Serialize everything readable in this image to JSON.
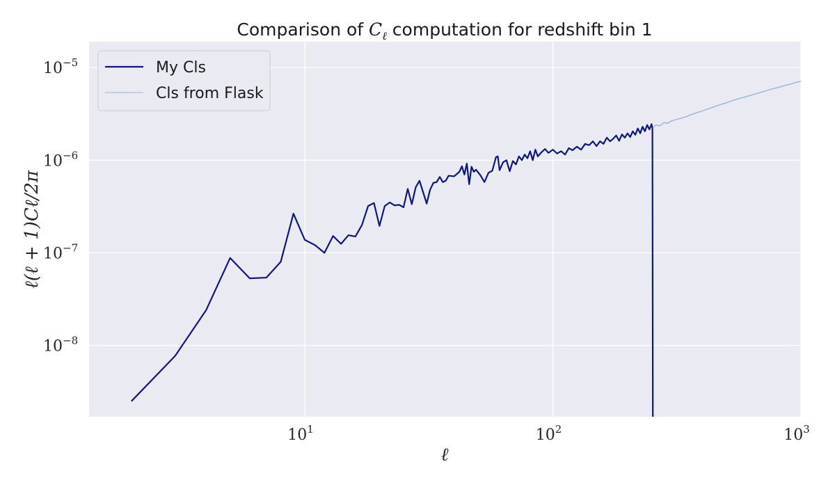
{
  "chart_data": {
    "type": "line",
    "title": "Comparison of C_ℓ computation for redshift bin 1",
    "title_parts": {
      "before": "Comparison of ",
      "symbol": "C",
      "subscript": "ℓ",
      "after": " computation for redshift bin 1"
    },
    "xlabel": "ℓ",
    "ylabel": "ℓ(ℓ + 1)Cℓ/2π",
    "x_scale": "log",
    "y_scale": "log",
    "xlim": [
      1.35,
      1000
    ],
    "ylim": [
      1.7e-09,
      1.9e-05
    ],
    "x_ticks": [
      {
        "value": 10,
        "base": "10",
        "exp": "1"
      },
      {
        "value": 100,
        "base": "10",
        "exp": "2"
      },
      {
        "value": 1000,
        "base": "10",
        "exp": "3"
      }
    ],
    "y_ticks": [
      {
        "value": 1e-05,
        "base": "10",
        "exp": "−5"
      },
      {
        "value": 1e-06,
        "base": "10",
        "exp": "−6"
      },
      {
        "value": 1e-07,
        "base": "10",
        "exp": "−7"
      },
      {
        "value": 1e-08,
        "base": "10",
        "exp": "−8"
      }
    ],
    "grid": true,
    "legend_position": "top-left",
    "colors": {
      "background": "#eaeaf2",
      "grid": "#ffffff",
      "my_cls": "#0c1683",
      "flask": "#97b4d4"
    },
    "series": [
      {
        "name": "My Cls",
        "style": "thick",
        "points": [
          [
            2,
            2.5e-09
          ],
          [
            3,
            7.7e-09
          ],
          [
            4,
            2.4e-08
          ],
          [
            5,
            8.8e-08
          ],
          [
            6,
            5.3e-08
          ],
          [
            7,
            5.4e-08
          ],
          [
            8,
            8e-08
          ],
          [
            9,
            2.65e-07
          ],
          [
            10,
            1.38e-07
          ],
          [
            11,
            1.21e-07
          ],
          [
            12,
            1e-07
          ],
          [
            13,
            1.52e-07
          ],
          [
            14,
            1.25e-07
          ],
          [
            15,
            1.55e-07
          ],
          [
            16,
            1.5e-07
          ],
          [
            17,
            2e-07
          ],
          [
            18,
            3.2e-07
          ],
          [
            19,
            3.45e-07
          ],
          [
            20,
            1.95e-07
          ],
          [
            21,
            3.2e-07
          ],
          [
            22,
            3.5e-07
          ],
          [
            23,
            3.25e-07
          ],
          [
            24,
            3.3e-07
          ],
          [
            25,
            3.1e-07
          ],
          [
            26,
            4.9e-07
          ],
          [
            27,
            3.35e-07
          ],
          [
            28,
            5.1e-07
          ],
          [
            29,
            6e-07
          ],
          [
            31,
            3.4e-07
          ],
          [
            32,
            4.8e-07
          ],
          [
            33,
            5.7e-07
          ],
          [
            34,
            5.8e-07
          ],
          [
            35,
            6.6e-07
          ],
          [
            36,
            5.8e-07
          ],
          [
            37,
            6e-07
          ],
          [
            38,
            6.8e-07
          ],
          [
            40,
            6.7e-07
          ],
          [
            42,
            7.5e-07
          ],
          [
            43,
            8.6e-07
          ],
          [
            44,
            7e-07
          ],
          [
            45,
            9.2e-07
          ],
          [
            46,
            5.5e-07
          ],
          [
            47,
            8.5e-07
          ],
          [
            48,
            7.5e-07
          ],
          [
            49,
            7.9e-07
          ],
          [
            51,
            6.9e-07
          ],
          [
            53,
            5.8e-07
          ],
          [
            55,
            7.3e-07
          ],
          [
            57,
            7.7e-07
          ],
          [
            59,
            1.08e-06
          ],
          [
            60,
            1.1e-06
          ],
          [
            61,
            7.8e-07
          ],
          [
            63,
            9.5e-07
          ],
          [
            65,
            1e-06
          ],
          [
            67,
            7.6e-07
          ],
          [
            69,
            9.8e-07
          ],
          [
            71,
            9e-07
          ],
          [
            73,
            1.1e-06
          ],
          [
            75,
            1e-06
          ],
          [
            77,
            1.15e-06
          ],
          [
            79,
            1.05e-06
          ],
          [
            81,
            1.25e-06
          ],
          [
            83,
            1e-06
          ],
          [
            85,
            1.3e-06
          ],
          [
            87,
            1.1e-06
          ],
          [
            90,
            1.22e-06
          ],
          [
            93,
            1.32e-06
          ],
          [
            96,
            1.2e-06
          ],
          [
            100,
            1.3e-06
          ],
          [
            104,
            1.18e-06
          ],
          [
            108,
            1.25e-06
          ],
          [
            112,
            1.15e-06
          ],
          [
            116,
            1.35e-06
          ],
          [
            120,
            1.28e-06
          ],
          [
            125,
            1.4e-06
          ],
          [
            130,
            1.3e-06
          ],
          [
            135,
            1.5e-06
          ],
          [
            140,
            1.45e-06
          ],
          [
            145,
            1.6e-06
          ],
          [
            150,
            1.42e-06
          ],
          [
            155,
            1.6e-06
          ],
          [
            160,
            1.5e-06
          ],
          [
            165,
            1.75e-06
          ],
          [
            170,
            1.6e-06
          ],
          [
            175,
            1.7e-06
          ],
          [
            180,
            1.85e-06
          ],
          [
            185,
            1.62e-06
          ],
          [
            190,
            1.9e-06
          ],
          [
            195,
            1.75e-06
          ],
          [
            200,
            1.95e-06
          ],
          [
            205,
            1.78e-06
          ],
          [
            210,
            2.05e-06
          ],
          [
            215,
            1.88e-06
          ],
          [
            220,
            2.2e-06
          ],
          [
            225,
            1.95e-06
          ],
          [
            230,
            2.3e-06
          ],
          [
            235,
            2.05e-06
          ],
          [
            240,
            2.4e-06
          ],
          [
            245,
            2.15e-06
          ],
          [
            250,
            2.45e-06
          ],
          [
            252,
            2.2e-06
          ],
          [
            253,
            1.7e-09
          ]
        ]
      },
      {
        "name": "Cls from Flask",
        "style": "thin",
        "points": [
          [
            253,
            2.25e-06
          ],
          [
            260,
            2.4e-06
          ],
          [
            270,
            2.35e-06
          ],
          [
            280,
            2.55e-06
          ],
          [
            290,
            2.5e-06
          ],
          [
            300,
            2.65e-06
          ],
          [
            315,
            2.75e-06
          ],
          [
            330,
            2.85e-06
          ],
          [
            345,
            2.95e-06
          ],
          [
            360,
            3.1e-06
          ],
          [
            380,
            3.25e-06
          ],
          [
            400,
            3.4e-06
          ],
          [
            425,
            3.6e-06
          ],
          [
            450,
            3.8e-06
          ],
          [
            475,
            4e-06
          ],
          [
            500,
            4.15e-06
          ],
          [
            530,
            4.4e-06
          ],
          [
            560,
            4.6e-06
          ],
          [
            600,
            4.85e-06
          ],
          [
            640,
            5.1e-06
          ],
          [
            680,
            5.35e-06
          ],
          [
            720,
            5.6e-06
          ],
          [
            770,
            5.9e-06
          ],
          [
            820,
            6.15e-06
          ],
          [
            870,
            6.45e-06
          ],
          [
            920,
            6.7e-06
          ],
          [
            960,
            6.95e-06
          ],
          [
            1000,
            7.1e-06
          ]
        ]
      }
    ]
  }
}
